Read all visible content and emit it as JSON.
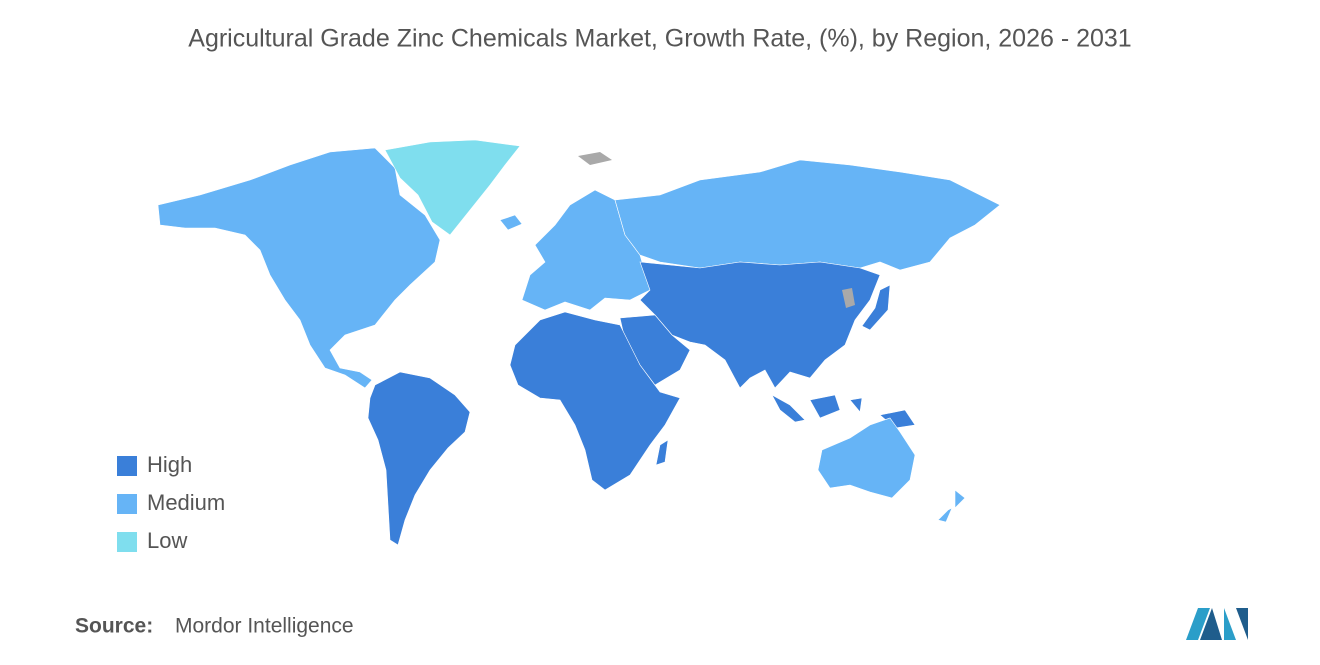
{
  "title": "Agricultural Grade Zinc Chemicals Market, Growth Rate, (%), by Region, 2026 - 2031",
  "legend": [
    {
      "label": "High",
      "color": "#3a7fd9"
    },
    {
      "label": "Medium",
      "color": "#66b4f6"
    },
    {
      "label": "Low",
      "color": "#7fdeee"
    }
  ],
  "source": {
    "label": "Source:",
    "name": "Mordor Intelligence"
  }
}
